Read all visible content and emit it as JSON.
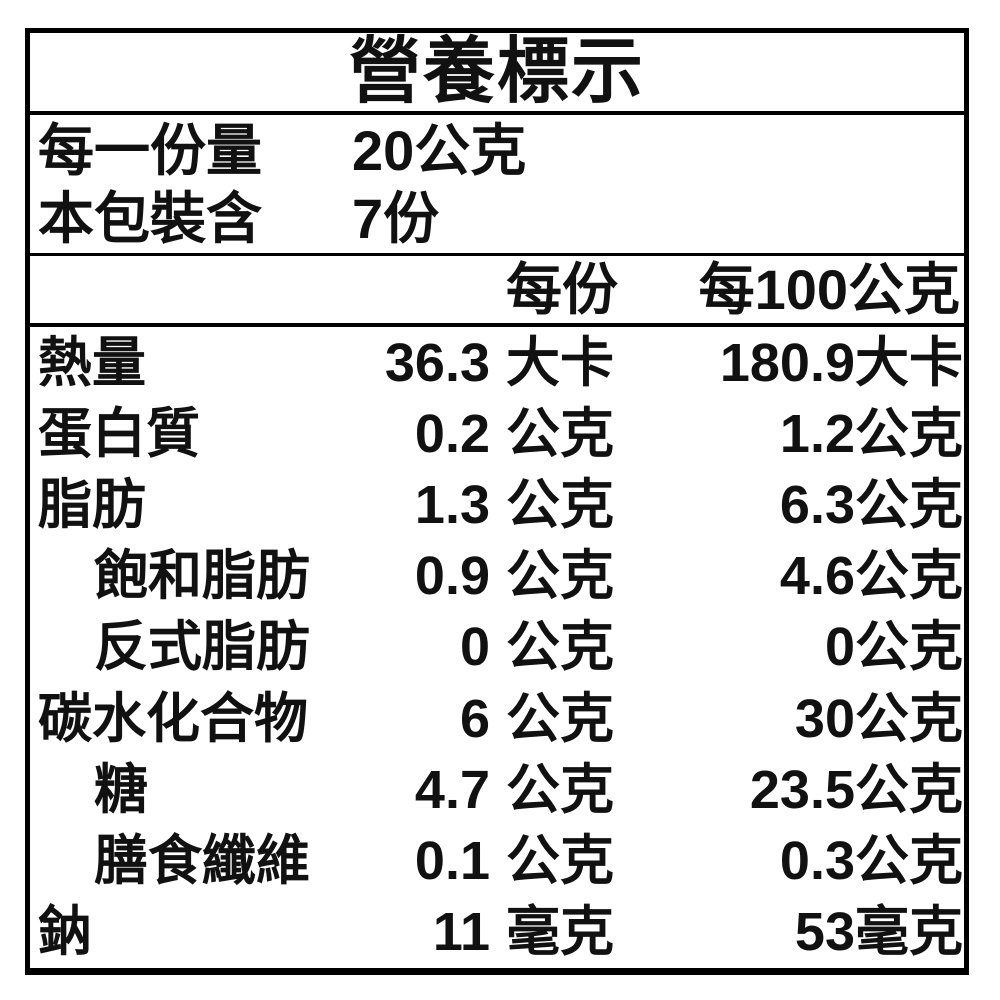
{
  "title": "營養標示",
  "serving_info": {
    "rows": [
      {
        "label": "每一份量",
        "value": "20公克"
      },
      {
        "label": "本包裝含",
        "value": "7份"
      }
    ]
  },
  "columns": {
    "per_serving": "每份",
    "per_100g": "每100公克"
  },
  "nutrients": [
    {
      "name": "熱量",
      "indent": false,
      "per_serving_value": "36.3",
      "per_serving_unit": "大卡",
      "per_100g_value": "180.9",
      "per_100g_unit": "大卡"
    },
    {
      "name": "蛋白質",
      "indent": false,
      "per_serving_value": "0.2",
      "per_serving_unit": "公克",
      "per_100g_value": "1.2",
      "per_100g_unit": "公克"
    },
    {
      "name": "脂肪",
      "indent": false,
      "per_serving_value": "1.3",
      "per_serving_unit": "公克",
      "per_100g_value": "6.3",
      "per_100g_unit": "公克"
    },
    {
      "name": "飽和脂肪",
      "indent": true,
      "per_serving_value": "0.9",
      "per_serving_unit": "公克",
      "per_100g_value": "4.6",
      "per_100g_unit": "公克"
    },
    {
      "name": "反式脂肪",
      "indent": true,
      "per_serving_value": "0",
      "per_serving_unit": "公克",
      "per_100g_value": "0",
      "per_100g_unit": "公克"
    },
    {
      "name": "碳水化合物",
      "indent": false,
      "per_serving_value": "6",
      "per_serving_unit": "公克",
      "per_100g_value": "30",
      "per_100g_unit": "公克"
    },
    {
      "name": "糖",
      "indent": true,
      "per_serving_value": "4.7",
      "per_serving_unit": "公克",
      "per_100g_value": "23.5",
      "per_100g_unit": "公克"
    },
    {
      "name": "膳食纖維",
      "indent": true,
      "per_serving_value": "0.1",
      "per_serving_unit": "公克",
      "per_100g_value": "0.3",
      "per_100g_unit": "公克"
    },
    {
      "name": "鈉",
      "indent": false,
      "per_serving_value": "11",
      "per_serving_unit": "毫克",
      "per_100g_value": "53",
      "per_100g_unit": "毫克"
    }
  ],
  "colors": {
    "text": "#111111",
    "border": "#000000",
    "background": "#ffffff"
  }
}
